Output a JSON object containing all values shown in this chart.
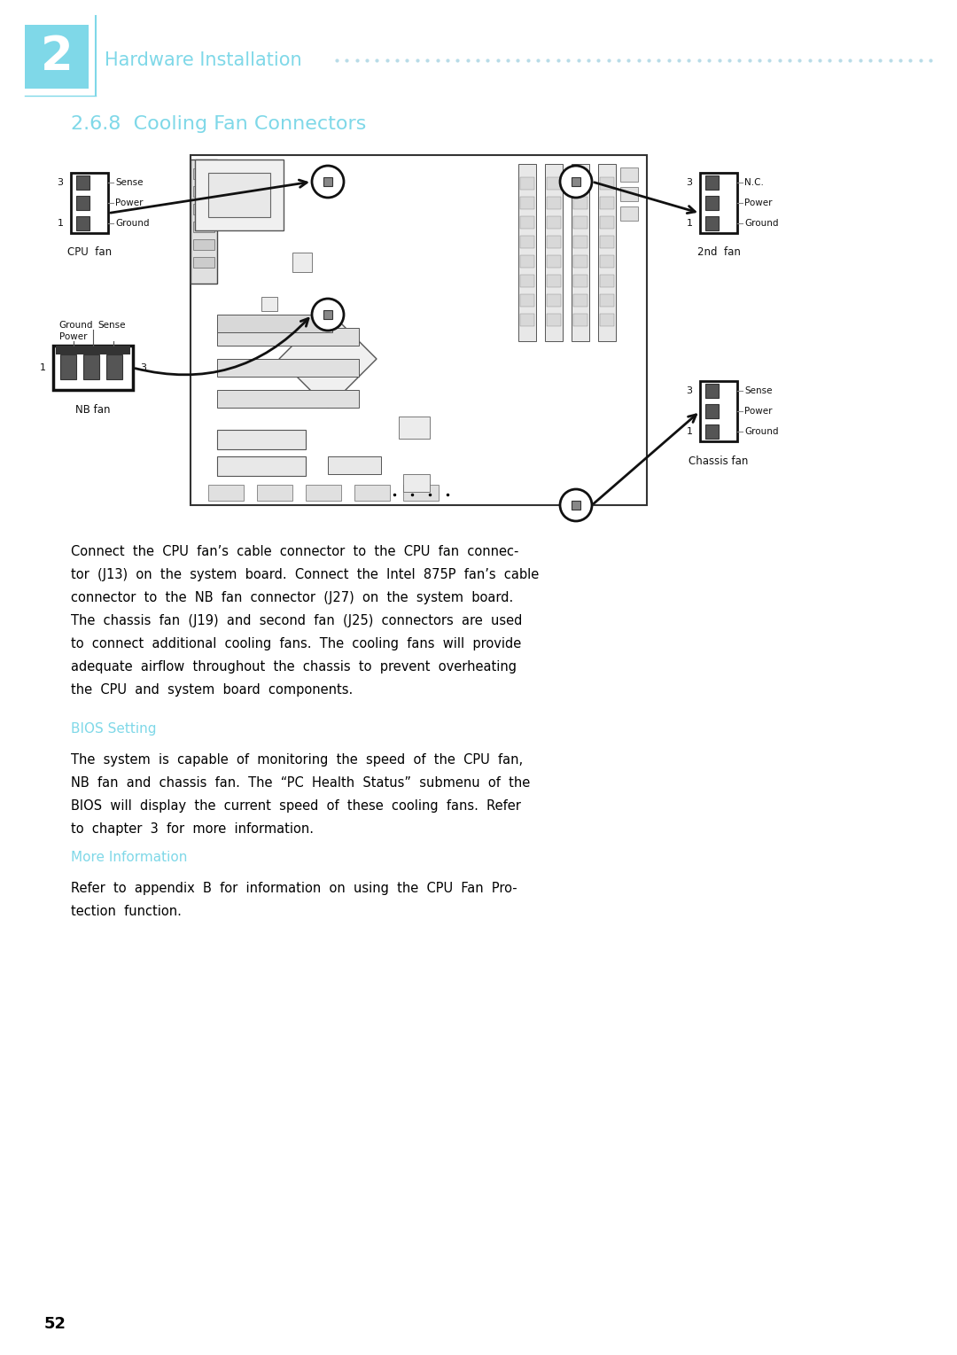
{
  "page_bg": "#ffffff",
  "chapter_num": "2",
  "chapter_color": "#7fd8e8",
  "header_title": "Hardware Installation",
  "header_dots_color": "#b8dce8",
  "section_title": "2.6.8  Cooling Fan Connectors",
  "section_color": "#7fd8e8",
  "body_color": "#000000",
  "body_text": "Connect  the  CPU  fan’s  cable  connector  to  the  CPU  fan  connec-\ntor  (J13)  on  the  system  board.  Connect  the  Intel  875P  fan’s  cable\nconnector  to  the  NB  fan  connector  (J27)  on  the  system  board.\nThe  chassis  fan  (J19)  and  second  fan  (J25)  connectors  are  used\nto  connect  additional  cooling  fans.  The  cooling  fans  will  provide\nadequate  airflow  throughout  the  chassis  to  prevent  overheating\nthe  CPU  and  system  board  components.",
  "bios_heading": "BIOS Setting",
  "bios_color": "#7fd8e8",
  "bios_text": "The  system  is  capable  of  monitoring  the  speed  of  the  CPU  fan,\nNB  fan  and  chassis  fan.  The  “PC  Health  Status”  submenu  of  the\nBIOS  will  display  the  current  speed  of  these  cooling  fans.  Refer\nto  chapter  3  for  more  information.",
  "more_heading": "More Information",
  "more_color": "#7fd8e8",
  "more_text": "Refer  to  appendix  B  for  information  on  using  the  CPU  Fan  Pro-\ntection  function.",
  "page_num": "52"
}
